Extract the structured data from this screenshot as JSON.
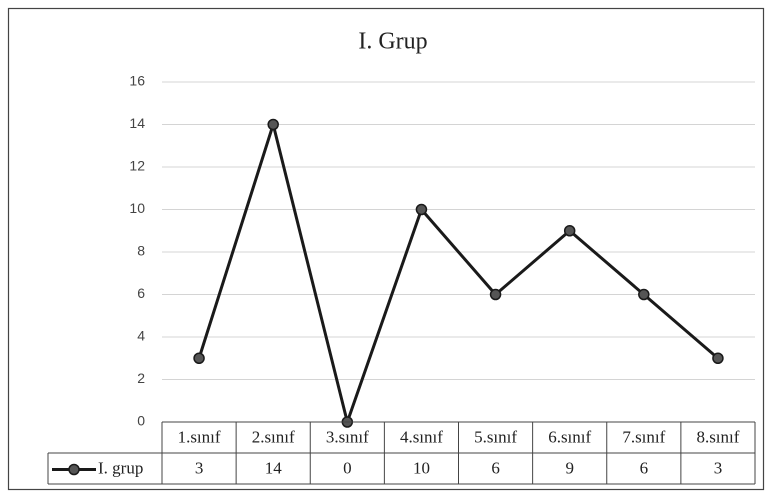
{
  "chart_data": {
    "type": "line",
    "title": "I. Grup",
    "categories": [
      "1.sınıf",
      "2.sınıf",
      "3.sınıf",
      "4.sınıf",
      "5.sınıf",
      "6.sınıf",
      "7.sınıf",
      "8.sınıf"
    ],
    "series": [
      {
        "name": "I. grup",
        "color": "#1a1a1a",
        "values": [
          3,
          14,
          0,
          10,
          6,
          9,
          6,
          3
        ]
      }
    ],
    "ylim": [
      0,
      16
    ],
    "yticks": [
      0,
      2,
      4,
      6,
      8,
      10,
      12,
      14,
      16
    ],
    "grid": true,
    "data_table": true
  }
}
